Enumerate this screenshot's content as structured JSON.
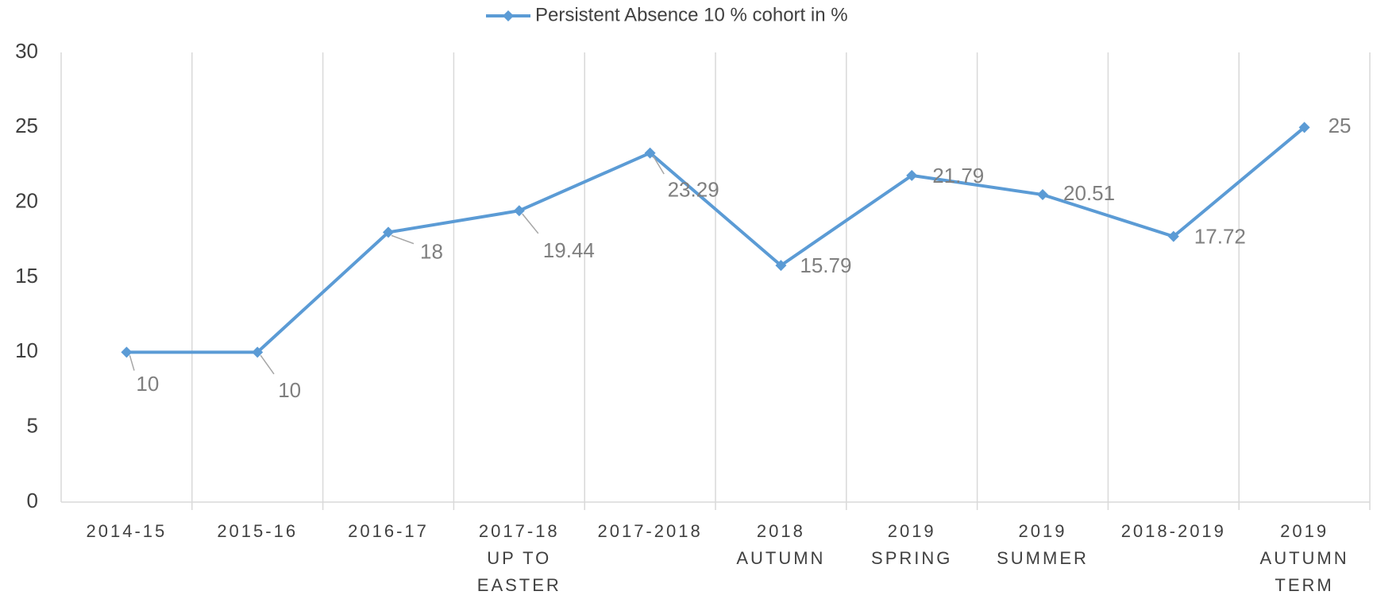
{
  "chart_data": {
    "type": "line",
    "categories": [
      [
        "2014-15"
      ],
      [
        "2015-16"
      ],
      [
        "2016-17"
      ],
      [
        "2017-18",
        "UP TO",
        "EASTER"
      ],
      [
        "2017-2018"
      ],
      [
        "2018",
        "AUTUMN"
      ],
      [
        "2019",
        "SPRING"
      ],
      [
        "2019",
        "SUMMER"
      ],
      [
        "2018-2019"
      ],
      [
        "2019",
        "AUTUMN",
        "TERM"
      ]
    ],
    "series": [
      {
        "name": "Persistent Absence 10 % cohort in %",
        "color": "#5b9bd5",
        "values": [
          10,
          10,
          18,
          19.44,
          23.29,
          15.79,
          21.79,
          20.51,
          17.72,
          25
        ]
      }
    ],
    "ylim": [
      0,
      30
    ],
    "yticks": [
      0,
      5,
      10,
      15,
      20,
      25,
      30
    ],
    "legend": "top"
  }
}
